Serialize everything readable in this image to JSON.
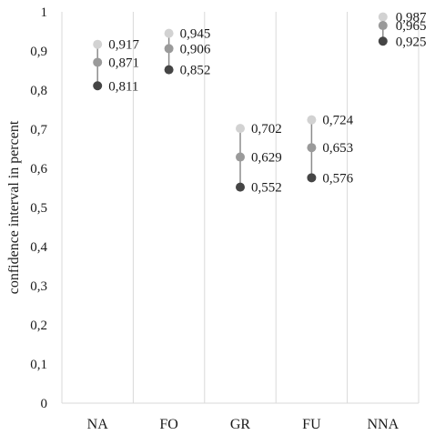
{
  "chart_data": {
    "type": "scatter",
    "ylabel": "confidence interval in percent",
    "xlabel": "",
    "title": "",
    "ylim": [
      0,
      1
    ],
    "yticks": [
      "0",
      "0,1",
      "0,2",
      "0,3",
      "0,4",
      "0,5",
      "0,6",
      "0,7",
      "0,8",
      "0,9",
      "1"
    ],
    "categories": [
      "NA",
      "FO",
      "GR",
      "FU",
      "NNA"
    ],
    "grid": "vertical",
    "series": [
      {
        "values": [
          0.917,
          0.945,
          0.702,
          0.724,
          0.987
        ],
        "labels": [
          "0,917",
          "0,945",
          "0,702",
          "0,724",
          "0,987"
        ],
        "color": "#d2d2d2"
      },
      {
        "values": [
          0.871,
          0.906,
          0.629,
          0.653,
          0.965
        ],
        "labels": [
          "0,871",
          "0,906",
          "0,629",
          "0,653",
          "0,965"
        ],
        "color": "#9a9a9a"
      },
      {
        "values": [
          0.811,
          0.852,
          0.552,
          0.576,
          0.925
        ],
        "labels": [
          "0,811",
          "0,852",
          "0,552",
          "0,576",
          "0,925"
        ],
        "color": "#454545"
      }
    ],
    "range_line_color": "#8c8c8c",
    "grid_color": "#d9d9d9"
  }
}
